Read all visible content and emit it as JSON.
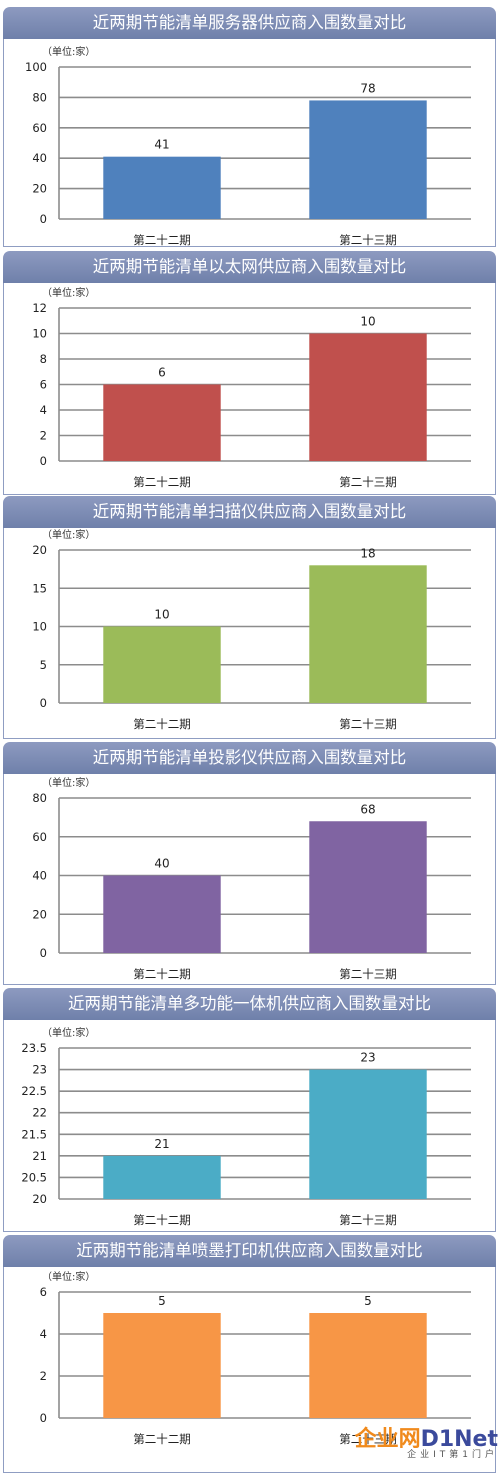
{
  "chart_data": [
    {
      "type": "bar",
      "title": "近两期节能清单服务器供应商入围数量对比",
      "unit_label": "（单位:家）",
      "categories": [
        "第二十二期",
        "第二十三期"
      ],
      "values": [
        41,
        78
      ],
      "data_labels": [
        "41",
        "78"
      ],
      "ylim": [
        0,
        100
      ],
      "yticks": [
        "0",
        "20",
        "40",
        "60",
        "80",
        "100"
      ],
      "color": "#4f81bd",
      "grid": true
    },
    {
      "type": "bar",
      "title": "近两期节能清单以太网供应商入围数量对比",
      "unit_label": "（单位:家）",
      "categories": [
        "第二十二期",
        "第二十三期"
      ],
      "values": [
        6,
        10
      ],
      "data_labels": [
        "6",
        "10"
      ],
      "ylim": [
        0,
        12
      ],
      "yticks": [
        "0",
        "2",
        "4",
        "6",
        "8",
        "10",
        "12"
      ],
      "color": "#c0504d",
      "grid": true
    },
    {
      "type": "bar",
      "title": "近两期节能清单扫描仪供应商入围数量对比",
      "unit_label": "（单位:家）",
      "categories": [
        "第二十二期",
        "第二十三期"
      ],
      "values": [
        10,
        18
      ],
      "data_labels": [
        "10",
        "18"
      ],
      "ylim": [
        0,
        20
      ],
      "yticks": [
        "0",
        "5",
        "10",
        "15",
        "20"
      ],
      "color": "#9bbb59",
      "grid": true
    },
    {
      "type": "bar",
      "title": "近两期节能清单投影仪供应商入围数量对比",
      "unit_label": "（单位:家）",
      "categories": [
        "第二十二期",
        "第二十三期"
      ],
      "values": [
        40,
        68
      ],
      "data_labels": [
        "40",
        "68"
      ],
      "ylim": [
        0,
        80
      ],
      "yticks": [
        "0",
        "20",
        "40",
        "60",
        "80"
      ],
      "color": "#8064a2",
      "grid": true
    },
    {
      "type": "bar",
      "title": "近两期节能清单多功能一体机供应商入围数量对比",
      "unit_label": "（单位:家）",
      "categories": [
        "第二十二期",
        "第二十三期"
      ],
      "values": [
        21,
        23
      ],
      "data_labels": [
        "21",
        "23"
      ],
      "ylim": [
        20,
        23.5
      ],
      "yticks": [
        "20",
        "20.5",
        "21",
        "21.5",
        "22",
        "22.5",
        "23",
        "23.5"
      ],
      "color": "#4bacc6",
      "grid": true
    },
    {
      "type": "bar",
      "title": "近两期节能清单喷墨打印机供应商入围数量对比",
      "unit_label": "（单位:家）",
      "categories": [
        "第二十二期",
        "第二十三期"
      ],
      "values": [
        5,
        5
      ],
      "data_labels": [
        "5",
        "5"
      ],
      "ylim": [
        0,
        6
      ],
      "yticks": [
        "0",
        "2",
        "4",
        "6"
      ],
      "color": "#f79646",
      "grid": true
    }
  ],
  "watermark": {
    "cn": "企业网",
    "en": "D1Net",
    "sub": "企业IT第1门户"
  }
}
